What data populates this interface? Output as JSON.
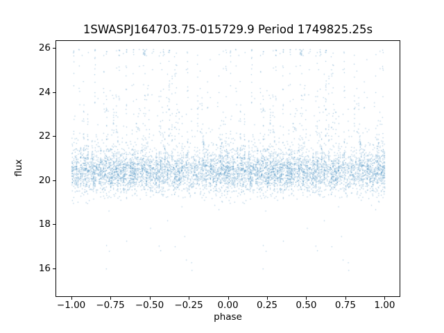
{
  "chart_data": {
    "type": "scatter",
    "title": "1SWASPJ164703.75-015729.9 Period 1749825.25s",
    "xlabel": "phase",
    "ylabel": "flux",
    "xlim": [
      -1.1,
      1.1
    ],
    "ylim": [
      14.7,
      26.35
    ],
    "xticks": {
      "values": [
        -1.0,
        -0.75,
        -0.5,
        -0.25,
        0.0,
        0.25,
        0.5,
        0.75,
        1.0
      ],
      "labels": [
        "−1.00",
        "−0.75",
        "−0.50",
        "−0.25",
        "0.00",
        "0.25",
        "0.50",
        "0.75",
        "1.00"
      ]
    },
    "yticks": {
      "values": [
        16,
        18,
        20,
        22,
        24,
        26
      ],
      "labels": [
        "16",
        "18",
        "20",
        "22",
        "24",
        "26"
      ]
    },
    "grid": false,
    "legend": "none",
    "point_color": "#1f77b4",
    "point_alpha": 0.5,
    "point_size": 1.1,
    "description": "Phase-folded light curve scatter plot. Phase runs from -1.0 to 1.0 (curve plotted twice, mirrored at phase-1). Dense noisy band of flux values roughly 19.3-21.6 centered near flux 20.4 across all phases, organized into many narrow vertical columns. Numerous columns spike upward to flux 23-26. Sparse low outliers scattered down to flux ~15.4. Points are tiny semi-transparent steel-blue markers.",
    "generator": {
      "seed": 1337,
      "columns_per_unit": 110,
      "points_per_column_min": 18,
      "points_per_column_max": 52,
      "phase_jitter": 0.0015,
      "band_mean": 20.35,
      "band_mean_column_scatter": 0.12,
      "band_std": 0.45,
      "spike_amp_base": 0.4,
      "spike_amp_scale": 5.2,
      "spike_prob_min": 0.12,
      "spike_prob_range": 0.38,
      "low_outlier_prob": 0.005,
      "low_outlier_min": 15.4,
      "low_outlier_range": 3.6,
      "flux_max_clamp": 25.95
    }
  }
}
